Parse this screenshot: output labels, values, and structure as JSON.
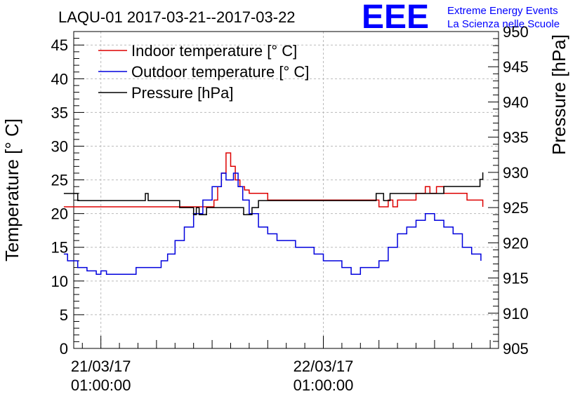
{
  "chart_data": {
    "type": "line",
    "title": "LAQU-01 2017-03-21--2017-03-22",
    "logo": {
      "mark": "EEE",
      "line1": "Extreme Energy Events",
      "line2": "La Scienza nelle Scuole",
      "color": "#0000ff"
    },
    "ylabel_left": "Temperature [° C]",
    "ylabel_right": "Pressure [hPa]",
    "ylim_left": [
      0,
      47
    ],
    "ylim_right": [
      905,
      950
    ],
    "yticks_left": [
      0,
      5,
      10,
      15,
      20,
      25,
      30,
      35,
      40,
      45
    ],
    "yticks_right": [
      905,
      910,
      915,
      920,
      925,
      930,
      935,
      940,
      945,
      950
    ],
    "x_unit": "hours since 2017-03-21 00:00",
    "xlim": [
      -1.93,
      43.9
    ],
    "xticks": [
      {
        "x": 1,
        "line1": "21/03/17",
        "line2": "01:00:00"
      },
      {
        "x": 25,
        "line1": "22/03/17",
        "line2": "01:00:00"
      }
    ],
    "legend_position": "top-left",
    "series": [
      {
        "name": "Indoor temperature [° C]",
        "color": "#dd0000",
        "axis": "left",
        "x": [
          -3,
          12.4,
          13.2,
          13.6,
          14,
          14.5,
          15,
          15.5,
          16,
          16.5,
          17,
          18.3,
          19,
          21,
          28,
          31,
          32,
          32.5,
          33,
          34.2,
          35,
          36,
          36.5,
          37.2,
          38,
          39.6,
          40.5,
          41.6,
          42.2
        ],
        "y": [
          21,
          21,
          22,
          24,
          26,
          29,
          27,
          25,
          24,
          23.5,
          23,
          23,
          22,
          22,
          22,
          21,
          22,
          21,
          22,
          22,
          23,
          24,
          23,
          24,
          23,
          23,
          22,
          22,
          21
        ]
      },
      {
        "name": "Outdoor temperature [° C]",
        "color": "#0000dd",
        "axis": "left",
        "x": [
          -3,
          -2.6,
          -1.5,
          -0.5,
          0.5,
          1.0,
          1.6,
          2.2,
          4.2,
          4.8,
          6.8,
          7.5,
          8.2,
          9.0,
          10.0,
          11.0,
          12.0,
          13.0,
          14.0,
          14.5,
          15.3,
          15.8,
          16.3,
          17.0,
          18.0,
          19.0,
          20.0,
          21.0,
          22.0,
          23.0,
          24.0,
          25.0,
          26.0,
          27.0,
          28.0,
          29.0,
          30.0,
          31.0,
          32.0,
          33.0,
          34.0,
          35.0,
          36.0,
          37.0,
          38.0,
          39.0,
          40.0,
          41.0,
          42.0
        ],
        "y": [
          14,
          13,
          12,
          11.5,
          11,
          11.5,
          11,
          11,
          11,
          12,
          12,
          13,
          14,
          16,
          18,
          20,
          22,
          24,
          26,
          25,
          26,
          24,
          22,
          20,
          18,
          17,
          16,
          16,
          15,
          15,
          14,
          13,
          13,
          12,
          11,
          12,
          12,
          13,
          15,
          17,
          18,
          19,
          20,
          19,
          18,
          17,
          15,
          14,
          13
        ]
      },
      {
        "name": "Pressure [hPa]",
        "color": "#000000",
        "axis": "right",
        "x": [
          -3,
          -1.5,
          5.5,
          5.8,
          6.1,
          8.6,
          9.5,
          10.5,
          11,
          11.3,
          11.6,
          12.4,
          16,
          16.4,
          17.3,
          18,
          24.5,
          29.4,
          30.7,
          31.5,
          32.2,
          33,
          38,
          41.9,
          42.2
        ],
        "y": [
          927,
          926,
          926,
          927,
          926,
          926,
          925,
          925,
          924,
          925,
          924,
          925,
          925,
          924,
          925,
          926,
          926,
          926,
          927,
          926,
          927,
          927,
          928,
          929,
          930
        ]
      }
    ]
  }
}
